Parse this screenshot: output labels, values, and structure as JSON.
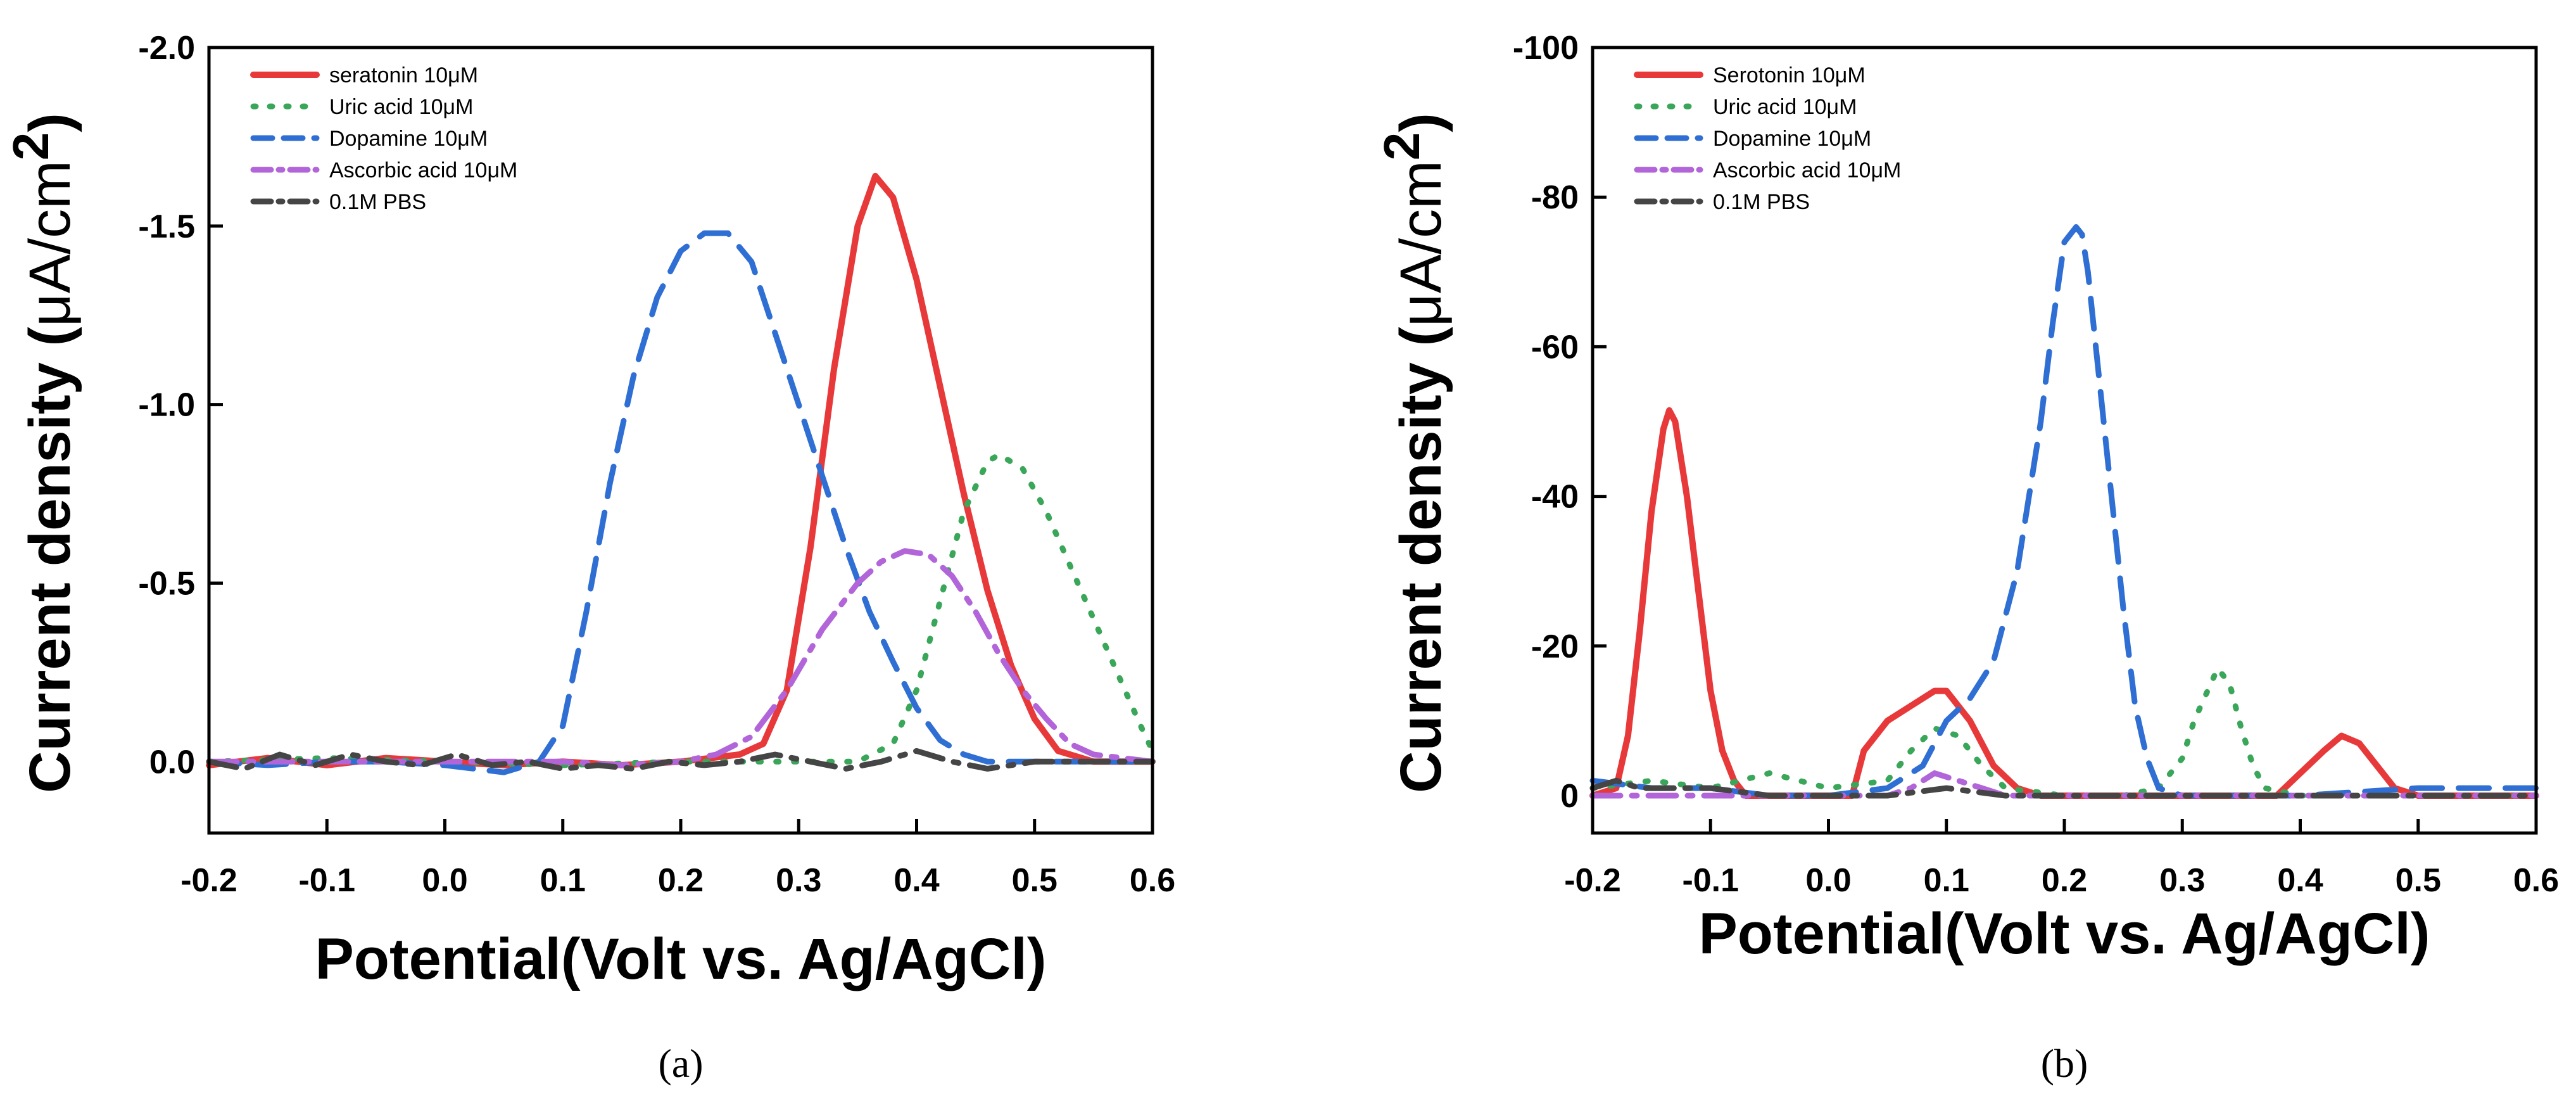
{
  "chart_data": [
    {
      "panel": "(a)",
      "type": "line",
      "xlabel": "Potential(Volt vs. Ag/AgCl)",
      "ylabel_main": "Current density (",
      "ylabel_unit": "μA/cm",
      "ylabel_sup": "2",
      "ylabel_close": ")",
      "xlim": [
        -0.2,
        0.6
      ],
      "ylim": [
        0.2,
        -2.0
      ],
      "xticks": [
        -0.2,
        -0.1,
        0.0,
        0.1,
        0.2,
        0.3,
        0.4,
        0.5,
        0.6
      ],
      "xtick_labels": [
        "-0.2",
        "-0.1",
        "0.0",
        "0.1",
        "0.2",
        "0.3",
        "0.4",
        "0.5",
        "0.6"
      ],
      "yticks": [
        0.0,
        -0.5,
        -1.0,
        -1.5,
        -2.0
      ],
      "ytick_labels": [
        "0.0",
        "-0.5",
        "-1.0",
        "-1.5",
        "-2.0"
      ],
      "legend_position": "top-left",
      "series": [
        {
          "name": "seratonin  10μM",
          "color": "#e8393a",
          "dash": "solid",
          "x": [
            -0.2,
            -0.15,
            -0.1,
            -0.05,
            0.0,
            0.05,
            0.1,
            0.15,
            0.2,
            0.25,
            0.27,
            0.29,
            0.31,
            0.33,
            0.35,
            0.365,
            0.38,
            0.4,
            0.42,
            0.44,
            0.46,
            0.48,
            0.5,
            0.52,
            0.55,
            0.6
          ],
          "y": [
            0.01,
            -0.01,
            0.01,
            -0.01,
            0.0,
            0.01,
            0.0,
            0.01,
            0.0,
            -0.02,
            -0.05,
            -0.2,
            -0.6,
            -1.1,
            -1.5,
            -1.64,
            -1.58,
            -1.35,
            -1.05,
            -0.75,
            -0.48,
            -0.27,
            -0.12,
            -0.03,
            0.0,
            0.0
          ]
        },
        {
          "name": "Uric acid 10μM",
          "color": "#3aa659",
          "dash": "dotted",
          "x": [
            -0.2,
            -0.1,
            0.0,
            0.1,
            0.2,
            0.3,
            0.35,
            0.38,
            0.4,
            0.42,
            0.44,
            0.46,
            0.47,
            0.49,
            0.51,
            0.53,
            0.55,
            0.57,
            0.59,
            0.6
          ],
          "y": [
            0.0,
            -0.01,
            0.0,
            0.01,
            0.0,
            0.0,
            0.0,
            -0.05,
            -0.2,
            -0.45,
            -0.7,
            -0.84,
            -0.86,
            -0.82,
            -0.7,
            -0.55,
            -0.4,
            -0.25,
            -0.1,
            -0.03
          ]
        },
        {
          "name": "Dopamine 10μM",
          "color": "#2f6fd4",
          "dash": "dashed",
          "x": [
            -0.2,
            -0.15,
            -0.1,
            -0.05,
            0.0,
            0.05,
            0.08,
            0.1,
            0.12,
            0.14,
            0.16,
            0.18,
            0.2,
            0.22,
            0.24,
            0.26,
            0.28,
            0.3,
            0.32,
            0.34,
            0.36,
            0.38,
            0.4,
            0.42,
            0.44,
            0.46,
            0.5,
            0.6
          ],
          "y": [
            0.0,
            0.01,
            0.0,
            0.0,
            0.01,
            0.03,
            0.0,
            -0.1,
            -0.42,
            -0.78,
            -1.08,
            -1.3,
            -1.43,
            -1.48,
            -1.48,
            -1.4,
            -1.2,
            -1.0,
            -0.8,
            -0.6,
            -0.42,
            -0.28,
            -0.15,
            -0.06,
            -0.02,
            0.0,
            0.0,
            0.0
          ]
        },
        {
          "name": "Ascorbic acid 10μM",
          "color": "#b265d9",
          "dash": "dashdot",
          "x": [
            -0.2,
            -0.1,
            0.0,
            0.1,
            0.15,
            0.2,
            0.23,
            0.26,
            0.29,
            0.32,
            0.35,
            0.37,
            0.39,
            0.41,
            0.43,
            0.45,
            0.47,
            0.49,
            0.51,
            0.53,
            0.55,
            0.6
          ],
          "y": [
            0.0,
            0.0,
            0.0,
            0.0,
            0.01,
            0.0,
            -0.02,
            -0.07,
            -0.2,
            -0.37,
            -0.5,
            -0.56,
            -0.59,
            -0.58,
            -0.52,
            -0.42,
            -0.3,
            -0.2,
            -0.12,
            -0.05,
            -0.02,
            0.0
          ]
        },
        {
          "name": "0.1M PBS",
          "color": "#454545",
          "dash": "dashdot",
          "x": [
            -0.2,
            -0.17,
            -0.14,
            -0.11,
            -0.08,
            -0.05,
            -0.02,
            0.01,
            0.04,
            0.07,
            0.1,
            0.13,
            0.16,
            0.19,
            0.22,
            0.25,
            0.28,
            0.31,
            0.34,
            0.37,
            0.4,
            0.43,
            0.46,
            0.5,
            0.55,
            0.6
          ],
          "y": [
            0.0,
            0.02,
            -0.02,
            0.01,
            -0.02,
            0.0,
            0.01,
            -0.02,
            0.01,
            0.0,
            0.02,
            0.01,
            0.02,
            0.0,
            0.01,
            0.0,
            -0.02,
            0.0,
            0.02,
            0.0,
            -0.03,
            0.0,
            0.02,
            0.0,
            0.0,
            0.0
          ]
        }
      ]
    },
    {
      "panel": "(b)",
      "type": "line",
      "xlabel": "Potential(Volt vs. Ag/AgCl)",
      "ylabel_main": "Current density (",
      "ylabel_unit": "μA/cm",
      "ylabel_sup": "2",
      "ylabel_close": ")",
      "xlim": [
        -0.2,
        0.6
      ],
      "ylim": [
        5,
        -100
      ],
      "xticks": [
        -0.2,
        -0.1,
        0.0,
        0.1,
        0.2,
        0.3,
        0.4,
        0.5,
        0.6
      ],
      "xtick_labels": [
        "-0.2",
        "-0.1",
        "0.0",
        "0.1",
        "0.2",
        "0.3",
        "0.4",
        "0.5",
        "0.6"
      ],
      "yticks": [
        0,
        -20,
        -40,
        -60,
        -80,
        -100
      ],
      "ytick_labels": [
        "0",
        "-20",
        "-40",
        "-60",
        "-80",
        "-100"
      ],
      "legend_position": "top-left",
      "series": [
        {
          "name": "Serotonin 10μM",
          "color": "#e8393a",
          "dash": "solid",
          "x": [
            -0.2,
            -0.18,
            -0.17,
            -0.16,
            -0.15,
            -0.14,
            -0.135,
            -0.13,
            -0.12,
            -0.11,
            -0.1,
            -0.09,
            -0.08,
            -0.07,
            -0.05,
            0.0,
            0.02,
            0.03,
            0.05,
            0.07,
            0.09,
            0.1,
            0.12,
            0.14,
            0.16,
            0.18,
            0.2,
            0.25,
            0.3,
            0.38,
            0.4,
            0.42,
            0.435,
            0.45,
            0.47,
            0.48,
            0.5,
            0.6
          ],
          "y": [
            0,
            -1,
            -8,
            -22,
            -38,
            -49,
            -51.5,
            -50,
            -40,
            -27,
            -14,
            -6,
            -2,
            0,
            0,
            0,
            0,
            -6,
            -10,
            -12,
            -14,
            -14,
            -10,
            -4,
            -1,
            0,
            0,
            0,
            0,
            0,
            -3,
            -6,
            -8,
            -7,
            -3,
            -1,
            0,
            0
          ]
        },
        {
          "name": "Uric acid 10μM",
          "color": "#3aa659",
          "dash": "dotted",
          "x": [
            -0.2,
            -0.15,
            -0.1,
            -0.05,
            0.0,
            0.05,
            0.07,
            0.09,
            0.11,
            0.13,
            0.15,
            0.2,
            0.25,
            0.28,
            0.3,
            0.31,
            0.33,
            0.34,
            0.35,
            0.36,
            0.37,
            0.4,
            0.5,
            0.6
          ],
          "y": [
            -1,
            -2,
            -1,
            -3,
            -1,
            -2,
            -6,
            -9,
            -8,
            -4,
            -1,
            0,
            0,
            -1,
            -5,
            -10,
            -17,
            -15,
            -9,
            -4,
            -1,
            0,
            0,
            0
          ]
        },
        {
          "name": "Dopamine 10μM",
          "color": "#2f6fd4",
          "dash": "dashed",
          "x": [
            -0.2,
            -0.15,
            -0.1,
            -0.05,
            0.0,
            0.05,
            0.08,
            0.1,
            0.12,
            0.14,
            0.16,
            0.18,
            0.19,
            0.2,
            0.21,
            0.215,
            0.22,
            0.23,
            0.24,
            0.25,
            0.26,
            0.27,
            0.28,
            0.3,
            0.35,
            0.4,
            0.5,
            0.6
          ],
          "y": [
            -2,
            -1,
            -1,
            0,
            0,
            -1,
            -4,
            -10,
            -13,
            -18,
            -30,
            -50,
            -63,
            -74,
            -76,
            -75,
            -70,
            -55,
            -40,
            -25,
            -12,
            -5,
            -1,
            0,
            0,
            0,
            -1,
            -1
          ]
        },
        {
          "name": "Ascorbic acid 10μM",
          "color": "#b265d9",
          "dash": "dashdot",
          "x": [
            -0.2,
            -0.1,
            -0.05,
            0.0,
            0.05,
            0.07,
            0.09,
            0.11,
            0.13,
            0.15,
            0.2,
            0.3,
            0.4,
            0.5,
            0.6
          ],
          "y": [
            0,
            0,
            0,
            0,
            0,
            -1,
            -3,
            -2,
            -1,
            0,
            0,
            0,
            0,
            0,
            0
          ]
        },
        {
          "name": "0.1M PBS",
          "color": "#454545",
          "dash": "dashdot",
          "x": [
            -0.2,
            -0.18,
            -0.16,
            -0.14,
            -0.12,
            -0.1,
            -0.05,
            0.0,
            0.05,
            0.1,
            0.15,
            0.2,
            0.3,
            0.4,
            0.5,
            0.6
          ],
          "y": [
            -1,
            -2,
            -1,
            -1,
            -1,
            -1,
            0,
            0,
            0,
            -1,
            0,
            0,
            0,
            0,
            0,
            0
          ]
        }
      ]
    }
  ]
}
